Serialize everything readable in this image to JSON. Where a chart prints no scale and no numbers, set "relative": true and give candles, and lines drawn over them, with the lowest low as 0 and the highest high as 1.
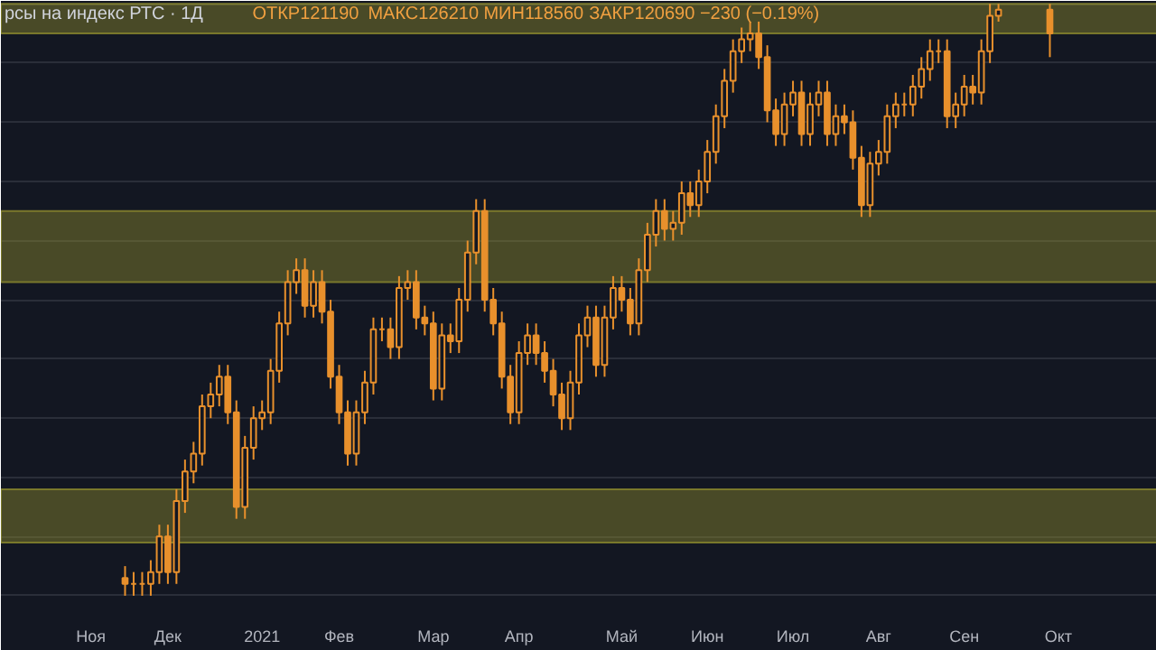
{
  "chart_data": {
    "type": "candlestick",
    "relative": true,
    "title": "рсы на индекс РТС · 1Д",
    "annotations": [
      "ОТКР121190",
      "МАКС126210",
      "МИН118560",
      "ЗАКР120690 −230 (−0.19%)"
    ],
    "color": "#e8902c",
    "grid": "y",
    "bands": [
      {
        "axis": "y",
        "from": 0.09,
        "to": 0.18,
        "color": "#8c8a2e"
      },
      {
        "axis": "y",
        "from": 0.53,
        "to": 0.65,
        "color": "#8c8a2e"
      },
      {
        "axis": "y",
        "from": 0.95,
        "to": 1.0,
        "color": "#8c8a2e"
      }
    ],
    "categories": [
      null,
      null,
      null,
      null,
      null,
      null,
      null,
      null,
      null,
      null,
      "Ноя",
      null,
      null,
      null,
      null,
      null,
      null,
      null,
      null,
      "Дек",
      null,
      null,
      null,
      null,
      null,
      null,
      null,
      null,
      null,
      null,
      "2021",
      null,
      null,
      null,
      null,
      null,
      null,
      null,
      null,
      "Фев",
      null,
      null,
      null,
      null,
      null,
      null,
      null,
      null,
      null,
      null,
      "Мар",
      null,
      null,
      null,
      null,
      null,
      null,
      null,
      null,
      null,
      "Апр",
      null,
      null,
      null,
      null,
      null,
      null,
      null,
      null,
      null,
      null,
      null,
      "Май",
      null,
      null,
      null,
      null,
      null,
      null,
      null,
      null,
      null,
      "Июн",
      null,
      null,
      null,
      null,
      null,
      null,
      null,
      null,
      null,
      "Июл",
      null,
      null,
      null,
      null,
      null,
      null,
      null,
      null,
      null,
      "Авг",
      null,
      null,
      null,
      null,
      null,
      null,
      null,
      null,
      null,
      "Сен",
      null,
      null,
      null,
      null,
      null,
      null,
      null,
      null,
      null,
      null,
      "Окт",
      null,
      null,
      null,
      null,
      null,
      null,
      null,
      null,
      null,
      null,
      null
    ],
    "ohlc": [
      null,
      null,
      null,
      null,
      null,
      null,
      null,
      null,
      null,
      null,
      null,
      null,
      null,
      null,
      [
        0.03,
        0.05,
        0,
        0.02
      ],
      [
        0.02,
        0.04,
        0,
        0.02
      ],
      [
        0.02,
        0.04,
        0,
        0.02
      ],
      [
        0.02,
        0.06,
        0,
        0.04
      ],
      [
        0.04,
        0.12,
        0.02,
        0.1
      ],
      [
        0.1,
        0.12,
        0.02,
        0.04
      ],
      [
        0.04,
        0.18,
        0.02,
        0.16
      ],
      [
        0.16,
        0.23,
        0.14,
        0.21
      ],
      [
        0.21,
        0.26,
        0.19,
        0.24
      ],
      [
        0.24,
        0.34,
        0.22,
        0.32
      ],
      [
        0.32,
        0.36,
        0.3,
        0.34
      ],
      [
        0.34,
        0.39,
        0.32,
        0.37
      ],
      [
        0.37,
        0.39,
        0.29,
        0.31
      ],
      [
        0.31,
        0.33,
        0.13,
        0.15
      ],
      [
        0.15,
        0.27,
        0.13,
        0.25
      ],
      [
        0.25,
        0.32,
        0.23,
        0.3
      ],
      [
        0.3,
        0.33,
        0.28,
        0.31
      ],
      [
        0.31,
        0.4,
        0.29,
        0.38
      ],
      [
        0.38,
        0.48,
        0.36,
        0.46
      ],
      [
        0.46,
        0.55,
        0.44,
        0.53
      ],
      [
        0.53,
        0.57,
        0.51,
        0.55
      ],
      [
        0.55,
        0.57,
        0.47,
        0.49
      ],
      [
        0.49,
        0.55,
        0.47,
        0.53
      ],
      [
        0.53,
        0.55,
        0.46,
        0.48
      ],
      [
        0.48,
        0.5,
        0.35,
        0.37
      ],
      [
        0.37,
        0.39,
        0.29,
        0.31
      ],
      [
        0.31,
        0.33,
        0.22,
        0.24
      ],
      [
        0.24,
        0.33,
        0.22,
        0.31
      ],
      [
        0.31,
        0.38,
        0.29,
        0.36
      ],
      [
        0.36,
        0.47,
        0.34,
        0.45
      ],
      [
        0.45,
        0.47,
        0.43,
        0.45
      ],
      [
        0.45,
        0.47,
        0.4,
        0.42
      ],
      [
        0.42,
        0.54,
        0.4,
        0.52
      ],
      [
        0.52,
        0.55,
        0.5,
        0.53
      ],
      [
        0.53,
        0.55,
        0.45,
        0.47
      ],
      [
        0.47,
        0.49,
        0.44,
        0.46
      ],
      [
        0.46,
        0.48,
        0.33,
        0.35
      ],
      [
        0.35,
        0.46,
        0.33,
        0.44
      ],
      [
        0.44,
        0.46,
        0.41,
        0.43
      ],
      [
        0.43,
        0.52,
        0.41,
        0.5
      ],
      [
        0.5,
        0.6,
        0.48,
        0.58
      ],
      [
        0.58,
        0.67,
        0.56,
        0.65
      ],
      [
        0.65,
        0.67,
        0.48,
        0.5
      ],
      [
        0.5,
        0.52,
        0.44,
        0.46
      ],
      [
        0.46,
        0.48,
        0.35,
        0.37
      ],
      [
        0.37,
        0.39,
        0.29,
        0.31
      ],
      [
        0.31,
        0.43,
        0.29,
        0.41
      ],
      [
        0.41,
        0.46,
        0.39,
        0.44
      ],
      [
        0.44,
        0.46,
        0.39,
        0.41
      ],
      [
        0.41,
        0.43,
        0.36,
        0.38
      ],
      [
        0.38,
        0.4,
        0.32,
        0.34
      ],
      [
        0.34,
        0.36,
        0.28,
        0.3
      ],
      [
        0.3,
        0.38,
        0.28,
        0.36
      ],
      [
        0.36,
        0.46,
        0.34,
        0.44
      ],
      [
        0.44,
        0.49,
        0.42,
        0.47
      ],
      [
        0.47,
        0.49,
        0.37,
        0.39
      ],
      [
        0.39,
        0.49,
        0.37,
        0.47
      ],
      [
        0.47,
        0.54,
        0.45,
        0.52
      ],
      [
        0.52,
        0.54,
        0.48,
        0.5
      ],
      [
        0.5,
        0.52,
        0.44,
        0.46
      ],
      [
        0.46,
        0.57,
        0.44,
        0.55
      ],
      [
        0.55,
        0.63,
        0.53,
        0.61
      ],
      [
        0.61,
        0.67,
        0.59,
        0.65
      ],
      [
        0.65,
        0.67,
        0.6,
        0.62
      ],
      [
        0.62,
        0.65,
        0.6,
        0.63
      ],
      [
        0.63,
        0.7,
        0.61,
        0.68
      ],
      [
        0.68,
        0.7,
        0.64,
        0.66
      ],
      [
        0.66,
        0.72,
        0.64,
        0.7
      ],
      [
        0.7,
        0.77,
        0.68,
        0.75
      ],
      [
        0.75,
        0.83,
        0.73,
        0.81
      ],
      [
        0.81,
        0.89,
        0.79,
        0.87
      ],
      [
        0.87,
        0.94,
        0.85,
        0.92
      ],
      [
        0.92,
        0.96,
        0.9,
        0.94
      ],
      [
        0.94,
        0.97,
        0.92,
        0.95
      ],
      [
        0.95,
        0.97,
        0.89,
        0.91
      ],
      [
        0.91,
        0.93,
        0.8,
        0.82
      ],
      [
        0.82,
        0.84,
        0.76,
        0.78
      ],
      [
        0.78,
        0.85,
        0.76,
        0.83
      ],
      [
        0.83,
        0.87,
        0.81,
        0.85
      ],
      [
        0.85,
        0.87,
        0.76,
        0.78
      ],
      [
        0.78,
        0.85,
        0.76,
        0.83
      ],
      [
        0.83,
        0.87,
        0.81,
        0.85
      ],
      [
        0.85,
        0.87,
        0.76,
        0.78
      ],
      [
        0.78,
        0.83,
        0.76,
        0.81
      ],
      [
        0.81,
        0.83,
        0.78,
        0.8
      ],
      [
        0.8,
        0.82,
        0.72,
        0.74
      ],
      [
        0.74,
        0.76,
        0.64,
        0.66
      ],
      [
        0.66,
        0.75,
        0.64,
        0.73
      ],
      [
        0.73,
        0.77,
        0.71,
        0.75
      ],
      [
        0.75,
        0.83,
        0.73,
        0.81
      ],
      [
        0.81,
        0.85,
        0.79,
        0.83
      ],
      [
        0.83,
        0.85,
        0.81,
        0.83
      ],
      [
        0.83,
        0.88,
        0.81,
        0.86
      ],
      [
        0.86,
        0.91,
        0.84,
        0.89
      ],
      [
        0.89,
        0.94,
        0.87,
        0.92
      ],
      [
        0.92,
        0.94,
        0.9,
        0.92
      ],
      [
        0.92,
        0.94,
        0.79,
        0.81
      ],
      [
        0.81,
        0.85,
        0.79,
        0.83
      ],
      [
        0.83,
        0.88,
        0.81,
        0.86
      ],
      [
        0.86,
        0.88,
        0.83,
        0.85
      ],
      [
        0.85,
        0.94,
        0.83,
        0.92
      ],
      [
        0.92,
        1.0,
        0.9,
        0.98
      ],
      [
        0.98,
        1.0,
        0.97,
        0.99
      ],
      null,
      null,
      null,
      null,
      null,
      [
        0.99,
        1.0,
        0.91,
        0.95
      ],
      null,
      null,
      null,
      null,
      null,
      null,
      null,
      null,
      null,
      null,
      null,
      null
    ]
  }
}
